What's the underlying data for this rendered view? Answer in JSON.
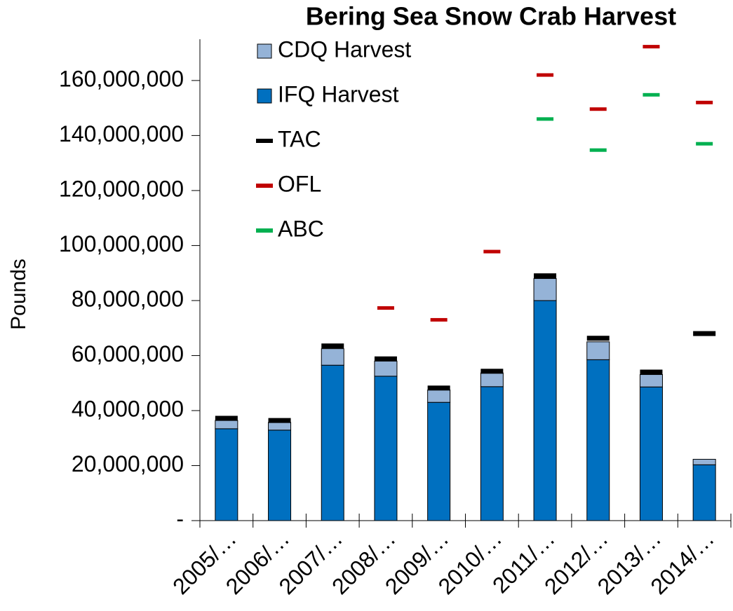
{
  "chart_data": {
    "type": "bar",
    "title": "Bering Sea Snow Crab Harvest",
    "y_label": "Pounds",
    "categories": [
      "2005/…",
      "2006/…",
      "2007/…",
      "2008/…",
      "2009/…",
      "2010/…",
      "2011/…",
      "2012/…",
      "2013/…",
      "2014/…"
    ],
    "stacked": true,
    "series": [
      {
        "name": "IFQ Harvest",
        "kind": "bar",
        "color": "#0070C0",
        "values": [
          33400000,
          32900000,
          56500000,
          52500000,
          43000000,
          48700000,
          80000000,
          58500000,
          48600000,
          20300000
        ]
      },
      {
        "name": "CDQ Harvest",
        "kind": "bar",
        "color": "#95B3D7",
        "values": [
          3000000,
          2800000,
          6000000,
          5500000,
          4500000,
          5000000,
          8000000,
          6500000,
          4500000,
          2000000
        ]
      },
      {
        "name": "TAC",
        "kind": "marker",
        "color": "#000000",
        "values": [
          37200000,
          36400000,
          63500000,
          58800000,
          48200000,
          54300000,
          89000000,
          66300000,
          54000000,
          68000000
        ]
      },
      {
        "name": "OFL",
        "kind": "marker",
        "color": "#C00000",
        "values": [
          null,
          null,
          null,
          77300000,
          73000000,
          97800000,
          162000000,
          149600000,
          172300000,
          152000000
        ]
      },
      {
        "name": "ABC",
        "kind": "marker",
        "color": "#00B050",
        "values": [
          null,
          null,
          null,
          null,
          null,
          null,
          146000000,
          134700000,
          154800000,
          137000000
        ]
      }
    ],
    "legend_order": [
      1,
      0,
      2,
      3,
      4
    ],
    "ylim": [
      0,
      175000000
    ],
    "yticks": [
      {
        "value": 0,
        "label": "-"
      },
      {
        "value": 20000000,
        "label": "20,000,000"
      },
      {
        "value": 40000000,
        "label": "40,000,000"
      },
      {
        "value": 60000000,
        "label": "60,000,000"
      },
      {
        "value": 80000000,
        "label": "80,000,000"
      },
      {
        "value": 100000000,
        "label": "100,000,000"
      },
      {
        "value": 120000000,
        "label": "120,000,000"
      },
      {
        "value": 140000000,
        "label": "140,000,000"
      },
      {
        "value": 160000000,
        "label": "160,000,000"
      }
    ]
  }
}
